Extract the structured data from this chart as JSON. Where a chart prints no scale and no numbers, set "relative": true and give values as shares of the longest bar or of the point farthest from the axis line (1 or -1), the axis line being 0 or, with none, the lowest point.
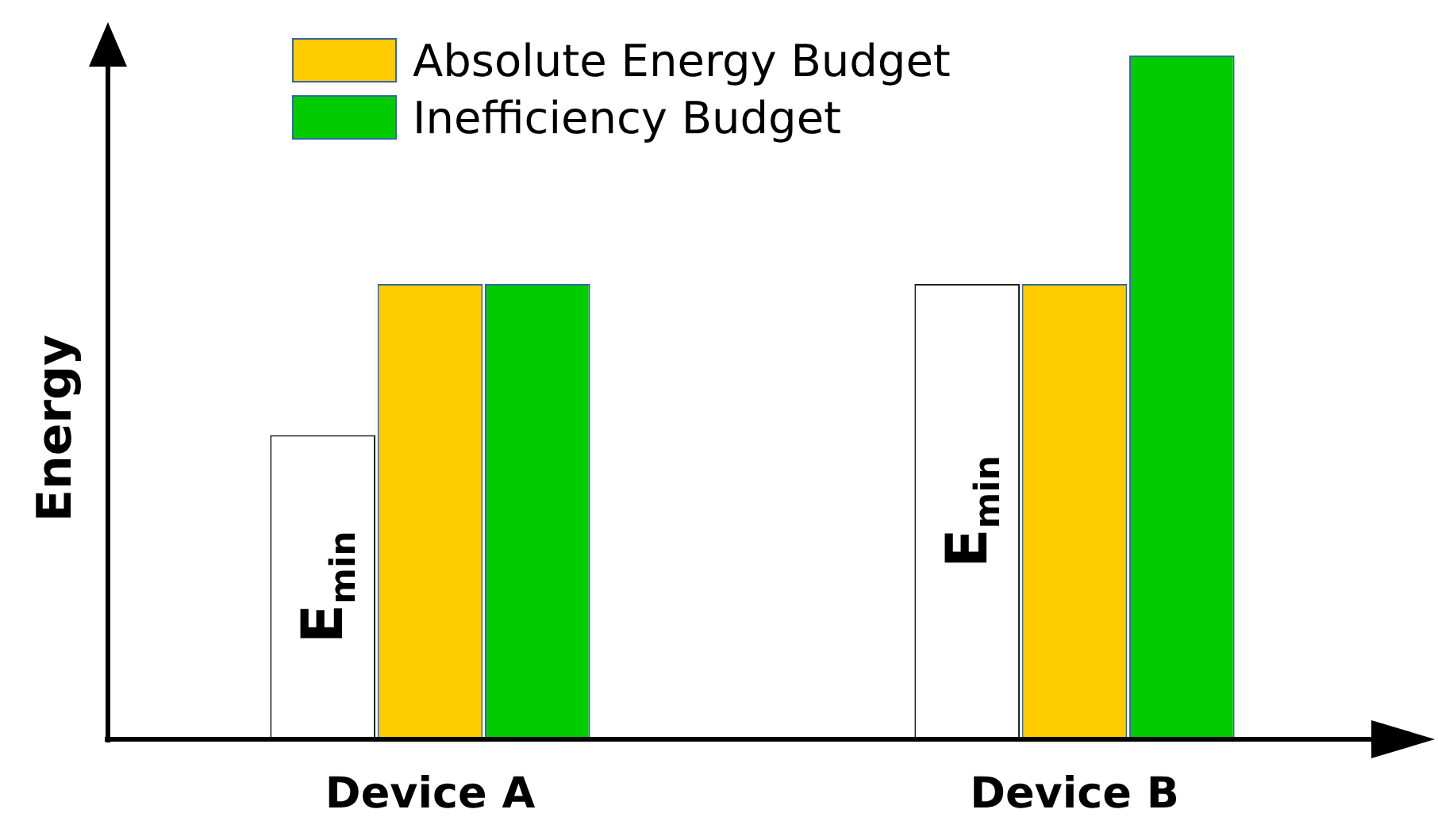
{
  "chart_data": {
    "type": "bar",
    "relative": true,
    "ylabel": "Energy",
    "categories": [
      "Device A",
      "Device B"
    ],
    "legend": "top",
    "series": [
      {
        "name": "E$_{min}$",
        "color": "#ffffff",
        "values": [
          0.445,
          0.666
        ]
      },
      {
        "name": "Absolute Energy Budget",
        "color": "#ffcc00",
        "values": [
          0.666,
          0.666
        ]
      },
      {
        "name": "Inefficiency Budget",
        "color": "#00cc00",
        "values": [
          0.666,
          1
        ]
      }
    ]
  }
}
